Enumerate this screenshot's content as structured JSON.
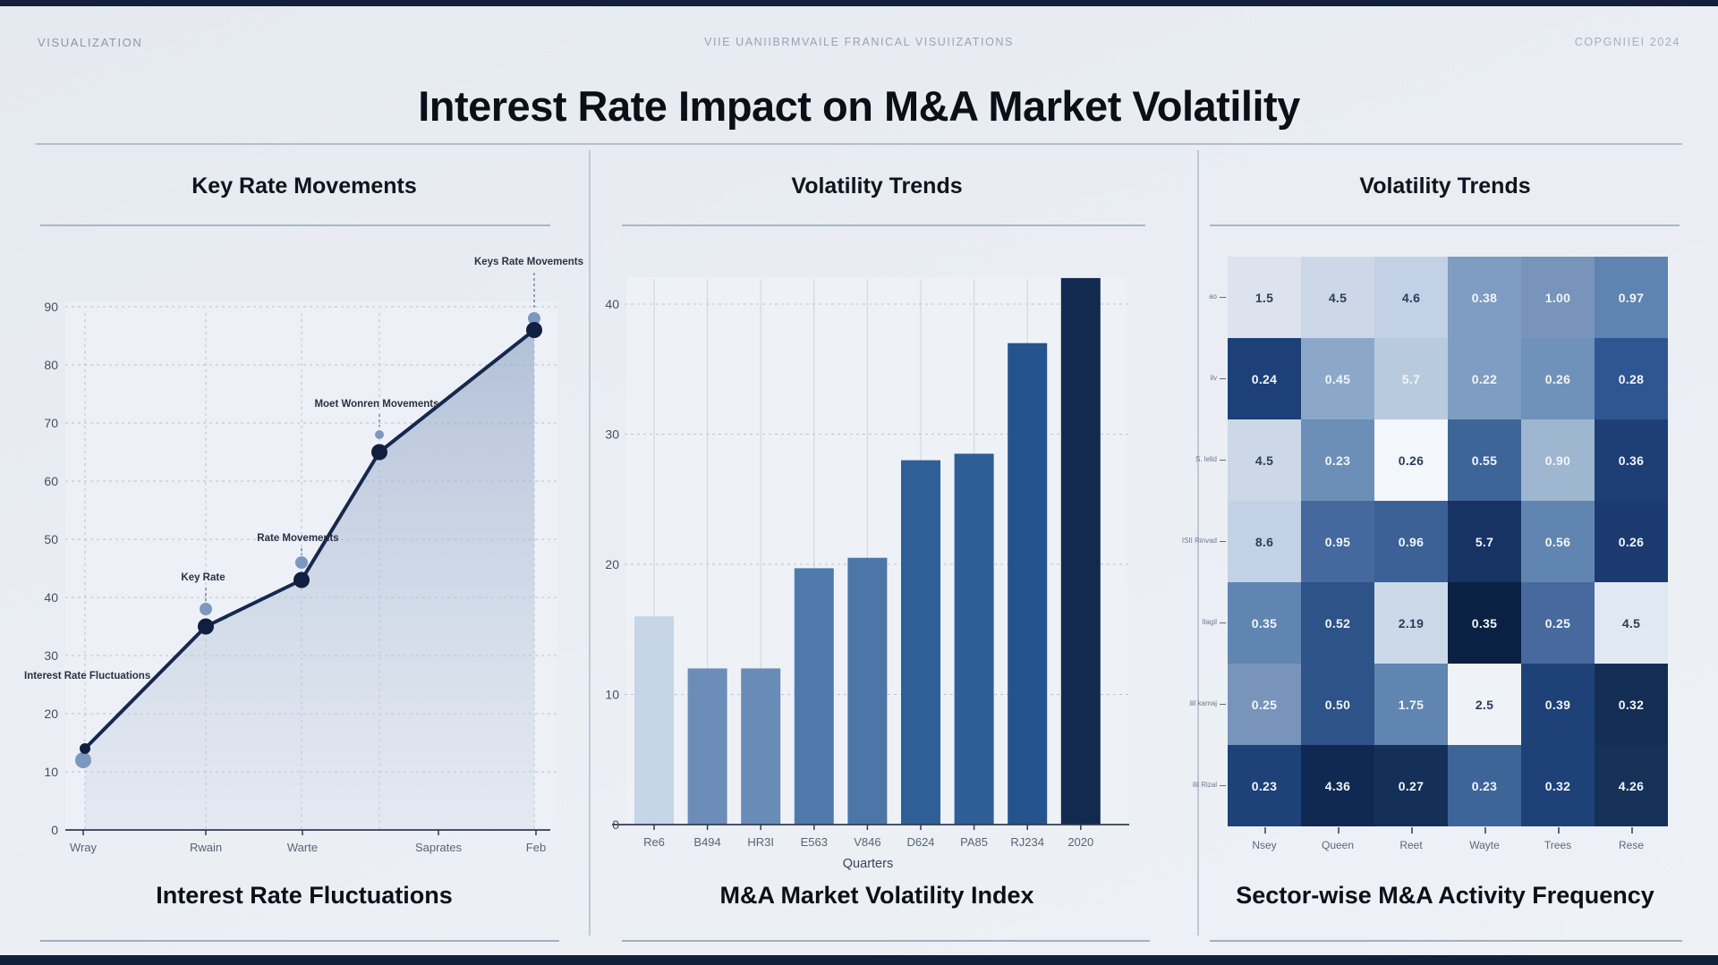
{
  "header": {
    "top_left": "VISUALIZATION",
    "top_center": "VIIE UANIIBRMVAILE FRANICAL VISUIIZATIONS",
    "top_right": "COPGNIIEI 2024",
    "title": "Interest Rate Impact on M&A Market Volatility"
  },
  "panels": [
    {
      "title": "Key Rate Movements",
      "caption": "Interest Rate Fluctuations"
    },
    {
      "title": "Volatility Trends",
      "caption": "M&A Market Volatility Index"
    },
    {
      "title": "Volatility Trends",
      "caption": "Sector-wise M&A Activity Frequency"
    }
  ],
  "colors": {
    "line": "#16284e",
    "dot_dark": "#101f3f",
    "dot_light": "#7d98c0",
    "grid": "#b9c2d2",
    "axis": "#313c52",
    "tick_text": "#454e60",
    "annotation_text": "#2a3246",
    "area_top": "rgba(141,162,196,0.62)",
    "area_bottom": "rgba(205,216,232,0.30)",
    "plot_bg": "#edf0f6"
  },
  "chart_data": [
    {
      "type": "line",
      "title": "Key Rate Movements",
      "caption": "Interest Rate Fluctuations",
      "x_labels": [
        "Wray",
        "Rwain",
        "Warte",
        "Saprates",
        "Feb"
      ],
      "values": [
        14,
        35,
        43,
        65,
        86
      ],
      "secondary_values": [
        12,
        38,
        46,
        68,
        88
      ],
      "yticks": [
        0,
        10,
        20,
        30,
        40,
        50,
        60,
        70,
        80,
        90
      ],
      "ylim": [
        0,
        95
      ],
      "grid": "dashed",
      "annotations": [
        {
          "point": 0,
          "text": "Interest Rate Fluctuations"
        },
        {
          "point": 1,
          "text": "Key Rate"
        },
        {
          "point": 2,
          "text": "Rate Movements"
        },
        {
          "point": 3,
          "text": "Moet Wonren Movements"
        },
        {
          "point": 4,
          "text": "Keys Rate Movements"
        }
      ]
    },
    {
      "type": "bar",
      "title": "Volatility Trends",
      "caption": "M&A Market Volatility Index",
      "xlabel": "Quarters",
      "categories": [
        "Re6",
        "B494",
        "HR3I",
        "E563",
        "V846",
        "D624",
        "PA85",
        "RJ234",
        "2020"
      ],
      "values": [
        16,
        12,
        12,
        19.7,
        20.5,
        28,
        28.5,
        37,
        42
      ],
      "bar_colors": [
        "#c6d5e8",
        "#6c8db9",
        "#698bb7",
        "#507aab",
        "#4b76a7",
        "#2e6097",
        "#2d5f96",
        "#25538d",
        "#132a50"
      ],
      "yticks": [
        0,
        10,
        20,
        30,
        40
      ],
      "ylim": [
        0,
        43
      ],
      "grid": "dashed"
    },
    {
      "type": "heatmap",
      "title": "Volatility Trends",
      "caption": "Sector-wise M&A Activity Frequency",
      "col_labels": [
        "Nsey",
        "Queen",
        "Reet",
        "Wayte",
        "Trees",
        "Rese"
      ],
      "row_labels": [
        "ao",
        "ilv",
        "S. lelid",
        "ISII Rinvad",
        "Ilagil",
        "ilil kamaj",
        "ilii Rizal"
      ],
      "values": [
        [
          "1.5",
          "4.5",
          "4.6",
          "0.38",
          "1.00",
          "0.97"
        ],
        [
          "0.24",
          "0.45",
          "5.7",
          "0.22",
          "0.26",
          "0.28"
        ],
        [
          "4.5",
          "0.23",
          "0.26",
          "0.55",
          "0.90",
          "0.36"
        ],
        [
          "8.6",
          "0.95",
          "0.96",
          "5.7",
          "0.56",
          "0.26"
        ],
        [
          "0.35",
          "0.52",
          "2.19",
          "0.35",
          "0.25",
          "4.5"
        ],
        [
          "0.25",
          "0.50",
          "1.75",
          "2.5",
          "0.39",
          "0.32"
        ],
        [
          "0.23",
          "4.36",
          "0.27",
          "0.23",
          "0.32",
          "4.26"
        ]
      ],
      "cell_colors": [
        [
          "#dce3ee",
          "#ccd8e8",
          "#c2d1e5",
          "#7f9dc2",
          "#7894bb",
          "#5e84b1"
        ],
        [
          "#1e4078",
          "#8ca8c8",
          "#b8cade",
          "#7f9dc2",
          "#6f92ba",
          "#2e5691"
        ],
        [
          "#ccd8e8",
          "#6c8fb8",
          "#f3f6fa",
          "#3d6598",
          "#9fb6d1",
          "#1d3f75"
        ],
        [
          "#c2d1e5",
          "#45699f",
          "#3b6197",
          "#163363",
          "#6085b1",
          "#1b3b70"
        ],
        [
          "#6085b1",
          "#2d5389",
          "#ccd9e8",
          "#0b2144",
          "#47699e",
          "#e0e8f1"
        ],
        [
          "#7894bb",
          "#2d5389",
          "#6085b1",
          "#eff3f8",
          "#1e4177",
          "#142d55"
        ],
        [
          "#1e4177",
          "#102952",
          "#143058",
          "#3d6598",
          "#1e4177",
          "#163158"
        ]
      ]
    }
  ]
}
